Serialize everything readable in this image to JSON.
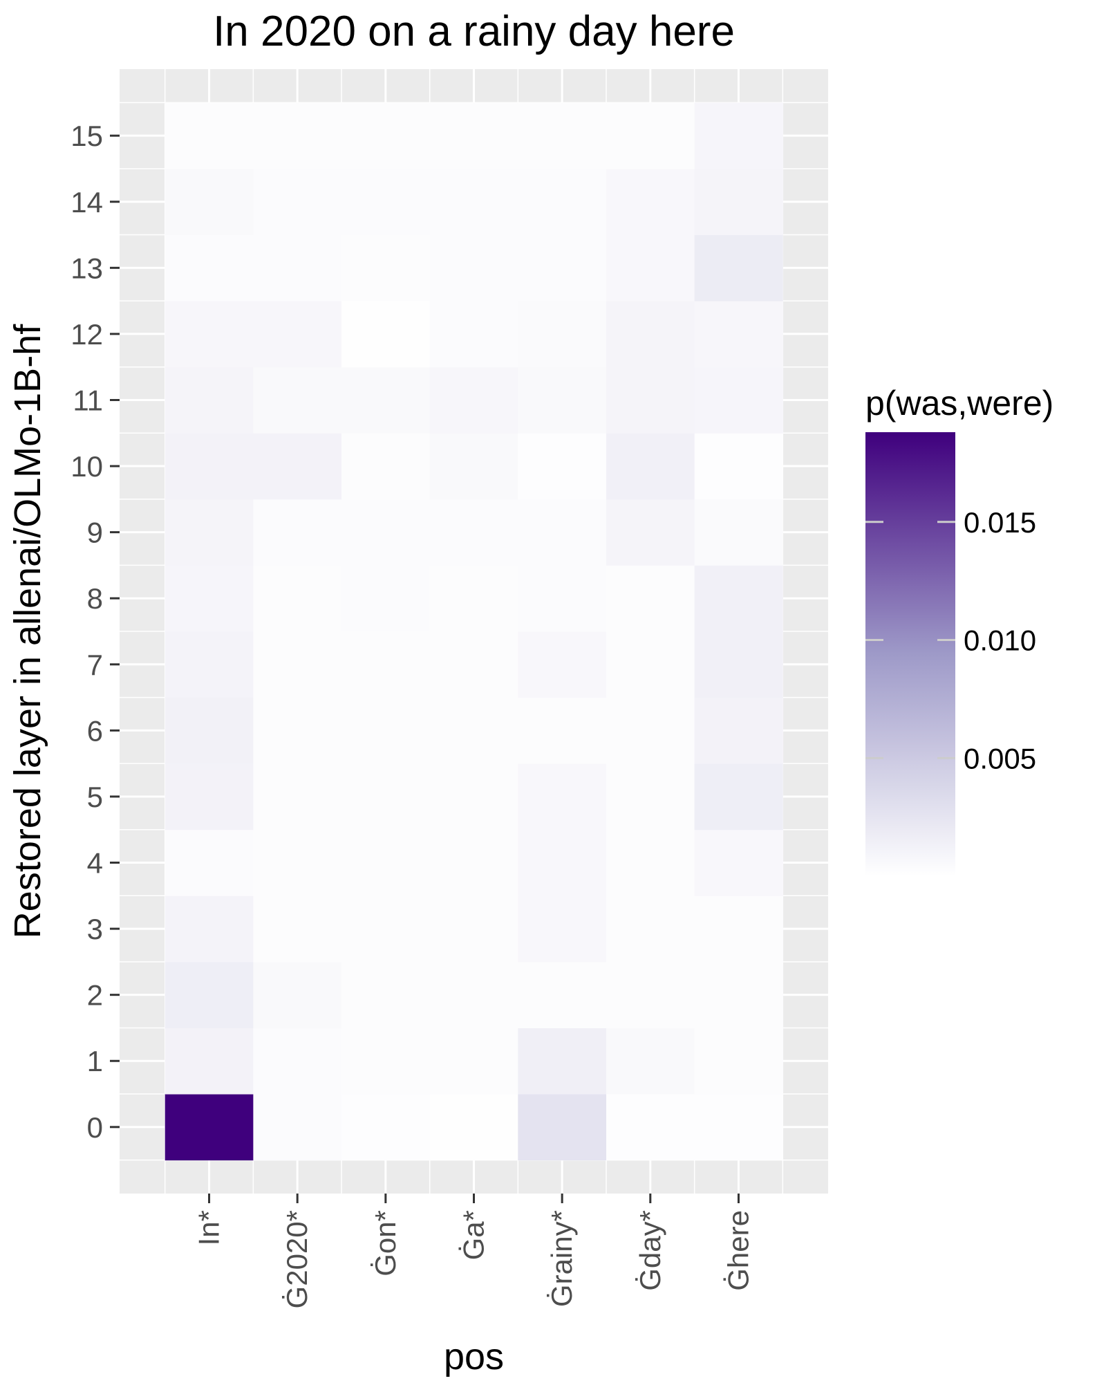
{
  "chart_data": {
    "type": "heatmap",
    "title": "In 2020 on a rainy day here",
    "xlabel": "pos",
    "ylabel": "Restored layer in allenai/OLMo-1B-hf",
    "x_categories": [
      "In*",
      "Ġ2020*",
      "Ġon*",
      "Ġa*",
      "Ġrainy*",
      "Ġday*",
      "Ġhere"
    ],
    "y_categories": [
      "0",
      "1",
      "2",
      "3",
      "4",
      "5",
      "6",
      "7",
      "8",
      "9",
      "10",
      "11",
      "12",
      "13",
      "14",
      "15"
    ],
    "values": [
      [
        0.0188,
        0.0004,
        0.0002,
        0.0001,
        0.0026,
        0.0002,
        0.0002
      ],
      [
        0.0012,
        0.0004,
        0.0003,
        0.0003,
        0.0015,
        0.0006,
        0.0003
      ],
      [
        0.0016,
        0.0006,
        0.0003,
        0.0003,
        0.0003,
        0.0003,
        0.0003
      ],
      [
        0.0011,
        0.0003,
        0.0003,
        0.0003,
        0.0007,
        0.0003,
        0.0003
      ],
      [
        0.0004,
        0.0003,
        0.0003,
        0.0003,
        0.0007,
        0.0003,
        0.0007
      ],
      [
        0.0012,
        0.0003,
        0.0003,
        0.0003,
        0.0007,
        0.0003,
        0.0016
      ],
      [
        0.0013,
        0.0003,
        0.0003,
        0.0003,
        0.0003,
        0.0003,
        0.0012
      ],
      [
        0.0011,
        0.0003,
        0.0003,
        0.0003,
        0.0007,
        0.0003,
        0.0014
      ],
      [
        0.0009,
        0.0003,
        0.0004,
        0.0003,
        0.0004,
        0.0003,
        0.0014
      ],
      [
        0.001,
        0.0004,
        0.0004,
        0.0004,
        0.0004,
        0.001,
        0.0005
      ],
      [
        0.0012,
        0.0012,
        0.0003,
        0.0006,
        0.0002,
        0.0014,
        0.0002
      ],
      [
        0.001,
        0.0006,
        0.0006,
        0.0008,
        0.0006,
        0.001,
        0.0009
      ],
      [
        0.0008,
        0.0008,
        0.0001,
        0.0004,
        0.0005,
        0.001,
        0.0008
      ],
      [
        0.0004,
        0.0004,
        0.0003,
        0.0004,
        0.0004,
        0.0007,
        0.0018
      ],
      [
        0.0006,
        0.0004,
        0.0004,
        0.0004,
        0.0004,
        0.0007,
        0.001
      ],
      [
        0.0003,
        0.0003,
        0.0003,
        0.0003,
        0.0003,
        0.0003,
        0.0009
      ]
    ],
    "legend": {
      "title": "p(was,were)",
      "min": 0,
      "max": 0.0188,
      "breaks": [
        0.005,
        0.01,
        0.015
      ],
      "break_labels": [
        "0.005",
        "0.010",
        "0.015"
      ],
      "color_low": "#ffffff",
      "color_high": "#3f007d",
      "position": "right"
    },
    "grid": true,
    "panel_background": "#ebebeb"
  }
}
